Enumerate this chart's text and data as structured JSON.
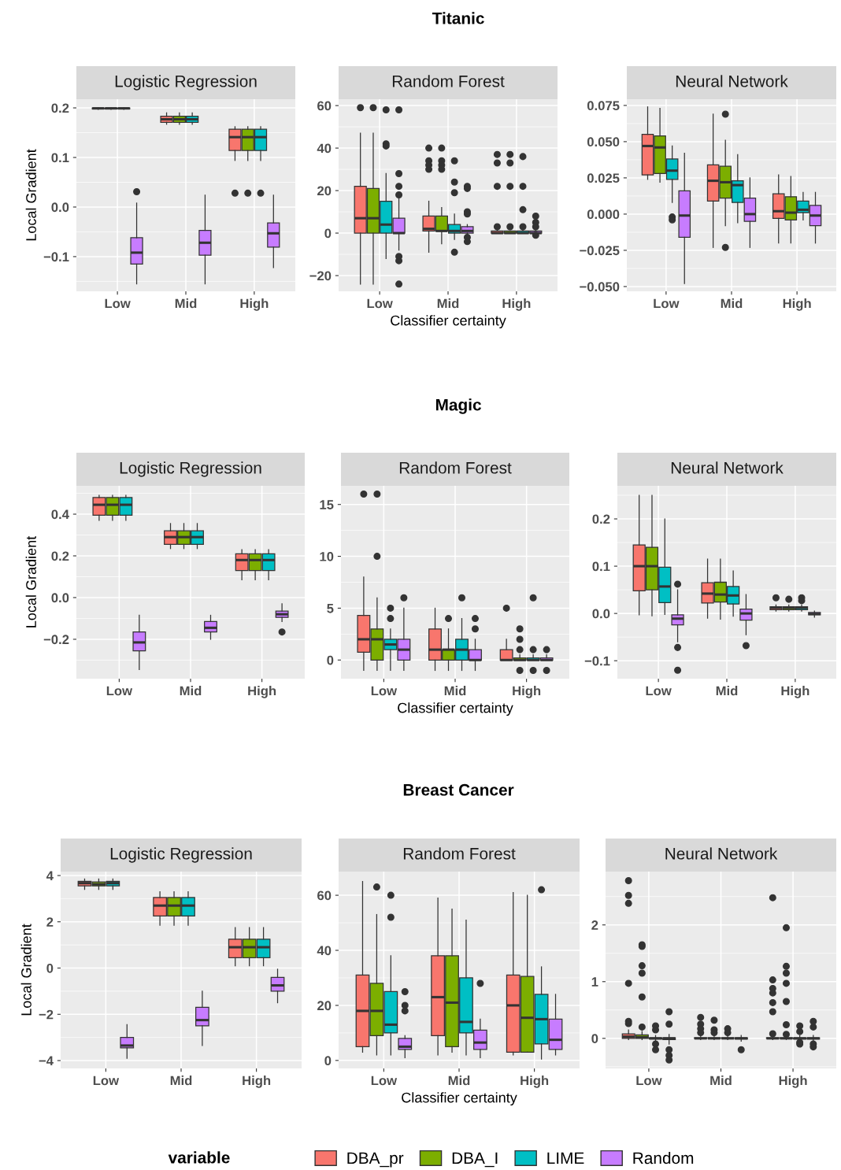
{
  "chart_data": [
    {
      "type": "box",
      "title": "Logistic Regression",
      "categories": [
        "Low",
        "Mid",
        "High"
      ],
      "ylabel": "Local Gradient",
      "legend": "bottom",
      "legend_title": "variable",
      "ylim": [
        -0.17,
        0.2175
      ],
      "yticks": [
        {
          "value": -0.1,
          "label": "−0.1"
        },
        {
          "value": 0,
          "label": "0.0"
        },
        {
          "value": 0.1,
          "label": "0.1"
        },
        {
          "value": 0.2,
          "label": "0.2"
        }
      ],
      "grid": true,
      "series": [
        {
          "name": "DBA_pr",
          "color": "#F8766D",
          "boxes": [
            {
              "low": 0.197,
              "q1": 0.198,
              "median": 0.199,
              "q3": 0.2,
              "high": 0.2
            },
            {
              "low": 0.167,
              "q1": 0.171,
              "median": 0.177,
              "q3": 0.183,
              "high": 0.19
            },
            {
              "low": 0.094,
              "q1": 0.114,
              "median": 0.141,
              "q3": 0.157,
              "high": 0.162,
              "outliers": [
                0.028
              ]
            }
          ]
        },
        {
          "name": "DBA_I",
          "color": "#7CAE00",
          "boxes": [
            {
              "low": 0.197,
              "q1": 0.198,
              "median": 0.199,
              "q3": 0.2,
              "high": 0.2
            },
            {
              "low": 0.167,
              "q1": 0.171,
              "median": 0.177,
              "q3": 0.183,
              "high": 0.19
            },
            {
              "low": 0.094,
              "q1": 0.114,
              "median": 0.141,
              "q3": 0.157,
              "high": 0.162,
              "outliers": [
                0.028
              ]
            }
          ]
        },
        {
          "name": "LIME",
          "color": "#00BFC4",
          "boxes": [
            {
              "low": 0.197,
              "q1": 0.198,
              "median": 0.199,
              "q3": 0.2,
              "high": 0.2
            },
            {
              "low": 0.167,
              "q1": 0.171,
              "median": 0.177,
              "q3": 0.183,
              "high": 0.19
            },
            {
              "low": 0.094,
              "q1": 0.114,
              "median": 0.141,
              "q3": 0.157,
              "high": 0.162,
              "outliers": [
                0.028
              ]
            }
          ]
        },
        {
          "name": "Random",
          "color": "#C77CFF",
          "boxes": [
            {
              "low": -0.155,
              "q1": -0.115,
              "median": -0.092,
              "q3": -0.062,
              "high": 0.008,
              "outliers": [
                0.031
              ]
            },
            {
              "low": -0.155,
              "q1": -0.097,
              "median": -0.072,
              "q3": -0.047,
              "high": 0.024
            },
            {
              "low": -0.122,
              "q1": -0.081,
              "median": -0.053,
              "q3": -0.032,
              "high": 0.024
            }
          ]
        }
      ]
    },
    {
      "type": "box",
      "title": "Random Forest",
      "categories": [
        "Low",
        "Mid",
        "High"
      ],
      "xlabel": "Classifier certainty",
      "annotations": [
        "Titanic"
      ],
      "ylim": [
        -27.4,
        63
      ],
      "yticks": [
        {
          "value": -20,
          "label": "−20"
        },
        0,
        20,
        40,
        60
      ],
      "grid": true,
      "series": [
        {
          "color": "#F8766D",
          "boxes": [
            {
              "low": -24,
              "q1": 0,
              "median": 7,
              "q3": 22,
              "high": 47,
              "outliers": [
                59
              ]
            },
            {
              "low": -9,
              "q1": 1,
              "median": 2,
              "q3": 8,
              "high": 15,
              "outliers": [
                40,
                34,
                32,
                30
              ]
            },
            {
              "low": 0,
              "q1": 0,
              "median": 0,
              "q3": 1,
              "high": 2,
              "outliers": [
                37,
                33,
                22,
                3
              ]
            }
          ]
        },
        {
          "color": "#7CAE00",
          "boxes": [
            {
              "low": -24,
              "q1": 0,
              "median": 7,
              "q3": 21,
              "high": 47,
              "outliers": [
                59
              ]
            },
            {
              "low": -5,
              "q1": 1,
              "median": 1,
              "q3": 8,
              "high": 12,
              "outliers": [
                40,
                34,
                32,
                30
              ]
            },
            {
              "low": 0,
              "q1": 0,
              "median": 0,
              "q3": 1,
              "high": 1,
              "outliers": [
                37,
                33,
                22,
                3
              ]
            }
          ]
        },
        {
          "color": "#00BFC4",
          "boxes": [
            {
              "low": -12,
              "q1": 0,
              "median": 4,
              "q3": 15,
              "high": 28,
              "outliers": [
                58,
                42,
                41
              ]
            },
            {
              "low": -3,
              "q1": 0,
              "median": 1,
              "q3": 4,
              "high": 9,
              "outliers": [
                34,
                24,
                19,
                -9
              ]
            },
            {
              "low": 0,
              "q1": 0,
              "median": 0,
              "q3": 1,
              "high": 2,
              "outliers": [
                36,
                22,
                11,
                3
              ]
            }
          ]
        },
        {
          "color": "#C77CFF",
          "boxes": [
            {
              "low": -8,
              "q1": 0,
              "median": 0,
              "q3": 7,
              "high": 17,
              "outliers": [
                58,
                28,
                22,
                18,
                -11,
                -13,
                -24
              ]
            },
            {
              "low": -2,
              "q1": 0,
              "median": 1,
              "q3": 3,
              "high": 4,
              "outliers": [
                22,
                21,
                10,
                9,
                -2,
                -4
              ]
            },
            {
              "low": 0,
              "q1": 0,
              "median": 0,
              "q3": 1,
              "high": 2,
              "outliers": [
                8,
                5,
                3,
                -1
              ]
            }
          ]
        }
      ]
    },
    {
      "type": "box",
      "title": "Neural Network",
      "categories": [
        "Low",
        "Mid",
        "High"
      ],
      "ylim": [
        -0.0533,
        0.0793
      ],
      "yticks": [
        {
          "value": -0.05,
          "label": "−0.050"
        },
        {
          "value": -0.025,
          "label": "−0.025"
        },
        {
          "value": 0,
          "label": "0.000"
        },
        {
          "value": 0.025,
          "label": "0.025"
        },
        {
          "value": 0.05,
          "label": "0.050"
        },
        {
          "value": 0.075,
          "label": "0.075"
        }
      ],
      "grid": true,
      "series": [
        {
          "color": "#F8766D",
          "boxes": [
            {
              "low": 0.024,
              "q1": 0.027,
              "median": 0.047,
              "q3": 0.055,
              "high": 0.074
            },
            {
              "low": -0.023,
              "q1": 0.009,
              "median": 0.023,
              "q3": 0.034,
              "high": 0.069
            },
            {
              "low": -0.02,
              "q1": -0.003,
              "median": 0.002,
              "q3": 0.014,
              "high": 0.027
            }
          ]
        },
        {
          "color": "#7CAE00",
          "boxes": [
            {
              "low": 0.022,
              "q1": 0.028,
              "median": 0.046,
              "q3": 0.054,
              "high": 0.073
            },
            {
              "low": -0.008,
              "q1": 0.011,
              "median": 0.022,
              "q3": 0.033,
              "high": 0.051,
              "outliers": [
                0.069,
                -0.023
              ]
            },
            {
              "low": -0.02,
              "q1": -0.004,
              "median": 0.001,
              "q3": 0.012,
              "high": 0.026
            }
          ]
        },
        {
          "color": "#00BFC4",
          "boxes": [
            {
              "low": 0.008,
              "q1": 0.024,
              "median": 0.03,
              "q3": 0.038,
              "high": 0.047,
              "outliers": [
                -0.002,
                -0.004
              ]
            },
            {
              "low": -0.006,
              "q1": 0.008,
              "median": 0.02,
              "q3": 0.023,
              "high": 0.041
            },
            {
              "low": -0.004,
              "q1": 0.001,
              "median": 0.003,
              "q3": 0.009,
              "high": 0.015
            }
          ]
        },
        {
          "color": "#C77CFF",
          "boxes": [
            {
              "low": -0.048,
              "q1": -0.016,
              "median": -0.001,
              "q3": 0.016,
              "high": 0.042
            },
            {
              "low": -0.023,
              "q1": -0.005,
              "median": 0,
              "q3": 0.011,
              "high": 0.025
            },
            {
              "low": -0.02,
              "q1": -0.008,
              "median": -0.001,
              "q3": 0.006,
              "high": 0.015
            }
          ]
        }
      ]
    },
    {
      "type": "box",
      "title": "Logistic Regression",
      "categories": [
        "Low",
        "Mid",
        "High"
      ],
      "ylabel": "Local Gradient",
      "ylim": [
        -0.389,
        0.536
      ],
      "yticks": [
        {
          "value": -0.2,
          "label": "−0.2"
        },
        {
          "value": 0,
          "label": "0.0"
        },
        {
          "value": 0.2,
          "label": "0.2"
        },
        {
          "value": 0.4,
          "label": "0.4"
        }
      ],
      "grid": true,
      "series": [
        {
          "color": "#F8766D",
          "boxes": [
            {
              "low": 0.37,
              "q1": 0.395,
              "median": 0.445,
              "q3": 0.48,
              "high": 0.49
            },
            {
              "low": 0.235,
              "q1": 0.255,
              "median": 0.29,
              "q3": 0.32,
              "high": 0.355
            },
            {
              "low": 0.085,
              "q1": 0.13,
              "median": 0.18,
              "q3": 0.21,
              "high": 0.23
            }
          ]
        },
        {
          "color": "#7CAE00",
          "boxes": [
            {
              "low": 0.37,
              "q1": 0.395,
              "median": 0.445,
              "q3": 0.48,
              "high": 0.49
            },
            {
              "low": 0.235,
              "q1": 0.255,
              "median": 0.29,
              "q3": 0.32,
              "high": 0.355
            },
            {
              "low": 0.085,
              "q1": 0.13,
              "median": 0.18,
              "q3": 0.21,
              "high": 0.23
            }
          ]
        },
        {
          "color": "#00BFC4",
          "boxes": [
            {
              "low": 0.37,
              "q1": 0.395,
              "median": 0.445,
              "q3": 0.48,
              "high": 0.49
            },
            {
              "low": 0.235,
              "q1": 0.255,
              "median": 0.29,
              "q3": 0.32,
              "high": 0.355
            },
            {
              "low": 0.085,
              "q1": 0.13,
              "median": 0.18,
              "q3": 0.21,
              "high": 0.23
            }
          ]
        },
        {
          "color": "#C77CFF",
          "boxes": [
            {
              "low": -0.345,
              "q1": -0.255,
              "median": -0.215,
              "q3": -0.165,
              "high": -0.085
            },
            {
              "low": -0.2,
              "q1": -0.165,
              "median": -0.145,
              "q3": -0.115,
              "high": -0.085
            },
            {
              "low": -0.115,
              "q1": -0.095,
              "median": -0.08,
              "q3": -0.065,
              "high": -0.03,
              "outliers": [
                -0.165
              ]
            }
          ]
        }
      ]
    },
    {
      "type": "box",
      "title": "Random Forest",
      "categories": [
        "Low",
        "Mid",
        "High"
      ],
      "xlabel": "Classifier certainty",
      "annotations": [
        "Magic"
      ],
      "ylim": [
        -1.8,
        16.8
      ],
      "yticks": [
        0,
        5,
        10,
        15
      ],
      "grid": true,
      "series": [
        {
          "color": "#F8766D",
          "boxes": [
            {
              "low": -1,
              "q1": 0.75,
              "median": 2,
              "q3": 4.3,
              "high": 8,
              "outliers": [
                16
              ]
            },
            {
              "low": -1,
              "q1": 0,
              "median": 1,
              "q3": 3,
              "high": 5
            },
            {
              "low": 0,
              "q1": 0,
              "median": 0,
              "q3": 1,
              "high": 2,
              "outliers": [
                5
              ]
            }
          ]
        },
        {
          "color": "#7CAE00",
          "boxes": [
            {
              "low": -1,
              "q1": 0,
              "median": 2,
              "q3": 3,
              "high": 6,
              "outliers": [
                16,
                10
              ]
            },
            {
              "low": -1,
              "q1": 0,
              "median": 1,
              "q3": 1,
              "high": 3,
              "outliers": [
                4
              ]
            },
            {
              "low": 0,
              "q1": 0,
              "median": 0,
              "q3": 0.2,
              "high": 0.5,
              "outliers": [
                3,
                2,
                1,
                -1
              ]
            }
          ]
        },
        {
          "color": "#00BFC4",
          "boxes": [
            {
              "low": -1,
              "q1": 1,
              "median": 1.5,
              "q3": 2,
              "high": 3,
              "outliers": [
                5,
                4
              ]
            },
            {
              "low": -1,
              "q1": 0,
              "median": 1,
              "q3": 2,
              "high": 4,
              "outliers": [
                6
              ]
            },
            {
              "low": 0,
              "q1": 0,
              "median": 0,
              "q3": 0.2,
              "high": 0.5,
              "outliers": [
                6,
                1,
                -1
              ]
            }
          ]
        },
        {
          "color": "#C77CFF",
          "boxes": [
            {
              "low": -1,
              "q1": 0,
              "median": 1,
              "q3": 2,
              "high": 5,
              "outliers": [
                6
              ]
            },
            {
              "low": -1,
              "q1": 0,
              "median": 0,
              "q3": 1,
              "high": 2,
              "outliers": [
                4,
                3
              ]
            },
            {
              "low": 0,
              "q1": 0,
              "median": 0,
              "q3": 0.2,
              "high": 0.5,
              "outliers": [
                1,
                -1
              ]
            }
          ]
        }
      ]
    },
    {
      "type": "box",
      "title": "Neural Network",
      "categories": [
        "Low",
        "Mid",
        "High"
      ],
      "ylim": [
        -0.138,
        0.27
      ],
      "yticks": [
        {
          "value": -0.1,
          "label": "−0.1"
        },
        {
          "value": 0,
          "label": "0.0"
        },
        {
          "value": 0.1,
          "label": "0.1"
        },
        {
          "value": 0.2,
          "label": "0.2"
        }
      ],
      "grid": true,
      "series": [
        {
          "color": "#F8766D",
          "boxes": [
            {
              "low": -0.003,
              "q1": 0.048,
              "median": 0.1,
              "q3": 0.145,
              "high": 0.25
            },
            {
              "low": -0.01,
              "q1": 0.022,
              "median": 0.042,
              "q3": 0.065,
              "high": 0.115
            },
            {
              "low": 0.005,
              "q1": 0.008,
              "median": 0.012,
              "q3": 0.014,
              "high": 0.018,
              "outliers": [
                0.033
              ]
            }
          ]
        },
        {
          "color": "#7CAE00",
          "boxes": [
            {
              "low": -0.005,
              "q1": 0.05,
              "median": 0.1,
              "q3": 0.14,
              "high": 0.25
            },
            {
              "low": -0.012,
              "q1": 0.024,
              "median": 0.04,
              "q3": 0.066,
              "high": 0.115
            },
            {
              "low": 0.005,
              "q1": 0.008,
              "median": 0.012,
              "q3": 0.014,
              "high": 0.018,
              "outliers": [
                0.03
              ]
            }
          ]
        },
        {
          "color": "#00BFC4",
          "boxes": [
            {
              "low": -0.002,
              "q1": 0.023,
              "median": 0.057,
              "q3": 0.098,
              "high": 0.2
            },
            {
              "low": -0.006,
              "q1": 0.02,
              "median": 0.038,
              "q3": 0.057,
              "high": 0.09
            },
            {
              "low": 0.005,
              "q1": 0.008,
              "median": 0.012,
              "q3": 0.014,
              "high": 0.018,
              "outliers": [
                0.033,
                0.027
              ]
            }
          ]
        },
        {
          "color": "#C77CFF",
          "boxes": [
            {
              "low": -0.06,
              "q1": -0.024,
              "median": -0.011,
              "q3": -0.003,
              "high": 0.05,
              "outliers": [
                0.062,
                -0.072,
                -0.12
              ]
            },
            {
              "low": -0.045,
              "q1": -0.014,
              "median": 0,
              "q3": 0.009,
              "high": 0.04,
              "outliers": [
                -0.068
              ]
            },
            {
              "low": -0.008,
              "q1": -0.003,
              "median": -0.001,
              "q3": 0.002,
              "high": 0.005
            }
          ]
        }
      ]
    },
    {
      "type": "box",
      "title": "Logistic Regression",
      "categories": [
        "Low",
        "Mid",
        "High"
      ],
      "ylabel": "Local Gradient",
      "ylim": [
        -4.34,
        4.17
      ],
      "yticks": [
        {
          "value": -4,
          "label": "−4"
        },
        {
          "value": -2,
          "label": "−2"
        },
        0,
        2,
        4
      ],
      "grid": true,
      "series": [
        {
          "color": "#F8766D",
          "boxes": [
            {
              "low": 3.4,
              "q1": 3.55,
              "median": 3.67,
              "q3": 3.75,
              "high": 3.85
            },
            {
              "low": 1.85,
              "q1": 2.25,
              "median": 2.7,
              "q3": 3.05,
              "high": 3.3
            },
            {
              "low": 0.1,
              "q1": 0.45,
              "median": 0.9,
              "q3": 1.25,
              "high": 1.75
            }
          ]
        },
        {
          "color": "#7CAE00",
          "boxes": [
            {
              "low": 3.4,
              "q1": 3.55,
              "median": 3.62,
              "q3": 3.72,
              "high": 3.85
            },
            {
              "low": 1.85,
              "q1": 2.25,
              "median": 2.7,
              "q3": 3.05,
              "high": 3.3
            },
            {
              "low": 0.1,
              "q1": 0.45,
              "median": 0.9,
              "q3": 1.25,
              "high": 1.75
            }
          ]
        },
        {
          "color": "#00BFC4",
          "boxes": [
            {
              "low": 3.4,
              "q1": 3.55,
              "median": 3.67,
              "q3": 3.75,
              "high": 3.85
            },
            {
              "low": 1.85,
              "q1": 2.25,
              "median": 2.7,
              "q3": 3.05,
              "high": 3.3
            },
            {
              "low": 0.1,
              "q1": 0.45,
              "median": 0.9,
              "q3": 1.25,
              "high": 1.75
            }
          ]
        },
        {
          "color": "#C77CFF",
          "boxes": [
            {
              "low": -3.9,
              "q1": -3.45,
              "median": -3.35,
              "q3": -3.0,
              "high": -2.45
            },
            {
              "low": -3.35,
              "q1": -2.5,
              "median": -2.25,
              "q3": -1.7,
              "high": -1.0
            },
            {
              "low": -1.5,
              "q1": -1.0,
              "median": -0.75,
              "q3": -0.4,
              "high": -0.05
            }
          ]
        }
      ]
    },
    {
      "type": "box",
      "title": "Random Forest",
      "categories": [
        "Low",
        "Mid",
        "High"
      ],
      "xlabel": "Classifier certainty",
      "annotations": [
        "Breast Cancer"
      ],
      "ylim": [
        -2.9,
        68.6
      ],
      "yticks": [
        0,
        20,
        40,
        60
      ],
      "grid": true,
      "series": [
        {
          "color": "#F8766D",
          "boxes": [
            {
              "low": 3,
              "q1": 5,
              "median": 18,
              "q3": 31,
              "high": 65
            },
            {
              "low": 2,
              "q1": 9,
              "median": 23,
              "q3": 38,
              "high": 59
            },
            {
              "low": 2,
              "q1": 3,
              "median": 20,
              "q3": 31,
              "high": 61
            }
          ]
        },
        {
          "color": "#7CAE00",
          "boxes": [
            {
              "low": 2,
              "q1": 9,
              "median": 18,
              "q3": 28,
              "high": 53,
              "outliers": [
                63
              ]
            },
            {
              "low": 3,
              "q1": 5,
              "median": 21,
              "q3": 38,
              "high": 55
            },
            {
              "low": 3,
              "q1": 3,
              "median": 15.5,
              "q3": 30.5,
              "high": 60
            }
          ]
        },
        {
          "color": "#00BFC4",
          "boxes": [
            {
              "low": 2,
              "q1": 10,
              "median": 13,
              "q3": 25,
              "high": 38,
              "outliers": [
                60,
                52
              ]
            },
            {
              "low": 2,
              "q1": 10,
              "median": 14,
              "q3": 30,
              "high": 51
            },
            {
              "low": 0.5,
              "q1": 6,
              "median": 15,
              "q3": 24,
              "high": 34,
              "outliers": [
                62
              ]
            }
          ]
        },
        {
          "color": "#C77CFF",
          "boxes": [
            {
              "low": 1,
              "q1": 4,
              "median": 5,
              "q3": 8,
              "high": 9,
              "outliers": [
                25,
                20,
                18
              ]
            },
            {
              "low": 1,
              "q1": 4,
              "median": 6.5,
              "q3": 11,
              "high": 15,
              "outliers": [
                28
              ]
            },
            {
              "low": 2,
              "q1": 4,
              "median": 7.5,
              "q3": 15,
              "high": 24
            }
          ]
        }
      ]
    },
    {
      "type": "box",
      "title": "Neural Network",
      "categories": [
        "Low",
        "Mid",
        "High"
      ],
      "ylim": [
        -0.53,
        2.94
      ],
      "yticks": [
        0,
        1,
        2
      ],
      "grid": true,
      "series": [
        {
          "color": "#F8766D",
          "boxes": [
            {
              "low": -0.02,
              "q1": 0,
              "median": 0.03,
              "q3": 0.08,
              "high": 0.15,
              "outliers": [
                2.78,
                2.52,
                2.38,
                0.97,
                0.3,
                0.26
              ]
            },
            {
              "low": -0.02,
              "q1": 0,
              "median": 0,
              "q3": 0.01,
              "high": 0.05,
              "outliers": [
                0.37,
                0.25,
                0.17,
                0.1
              ]
            },
            {
              "low": -0.02,
              "q1": 0,
              "median": 0,
              "q3": 0.01,
              "high": 0.04,
              "outliers": [
                2.48,
                1.03,
                0.88,
                0.8,
                0.63,
                0.47,
                0.08
              ]
            }
          ]
        },
        {
          "color": "#7CAE00",
          "boxes": [
            {
              "low": -0.02,
              "q1": 0,
              "median": 0.02,
              "q3": 0.06,
              "high": 0.12,
              "outliers": [
                1.65,
                1.62,
                1.28,
                1.15,
                0.73,
                0.2
              ]
            },
            {
              "low": -0.02,
              "q1": 0,
              "median": 0,
              "q3": 0.01,
              "high": 0.05,
              "outliers": [
                0.32,
                0.15,
                0.1
              ]
            },
            {
              "low": -0.02,
              "q1": 0,
              "median": 0,
              "q3": 0.01,
              "high": 0.04,
              "outliers": [
                1.95,
                1.27,
                1.15,
                0.97,
                0.65,
                0.24,
                0.07
              ]
            }
          ]
        },
        {
          "color": "#00BFC4",
          "boxes": [
            {
              "low": -0.05,
              "q1": -0.01,
              "median": 0,
              "q3": 0.01,
              "high": 0.05,
              "outliers": [
                0.22,
                0.15,
                -0.1,
                -0.2
              ]
            },
            {
              "low": -0.02,
              "q1": 0,
              "median": 0,
              "q3": 0.01,
              "high": 0.05,
              "outliers": [
                0.17,
                0.1
              ]
            },
            {
              "low": -0.05,
              "q1": -0.01,
              "median": 0,
              "q3": 0.01,
              "high": 0.05,
              "outliers": [
                0.22,
                0.12,
                -0.07,
                -0.1
              ]
            }
          ]
        },
        {
          "color": "#C77CFF",
          "boxes": [
            {
              "low": -0.1,
              "q1": -0.02,
              "median": 0,
              "q3": 0.01,
              "high": 0.07,
              "outliers": [
                0.47,
                0.25,
                -0.2,
                -0.3,
                -0.38
              ]
            },
            {
              "low": -0.05,
              "q1": -0.01,
              "median": 0,
              "q3": 0.01,
              "high": 0.05,
              "outliers": [
                -0.2
              ]
            },
            {
              "low": -0.05,
              "q1": -0.01,
              "median": 0,
              "q3": 0.01,
              "high": 0.05,
              "outliers": [
                0.3,
                0.2,
                -0.1,
                -0.15
              ]
            }
          ]
        }
      ]
    }
  ]
}
